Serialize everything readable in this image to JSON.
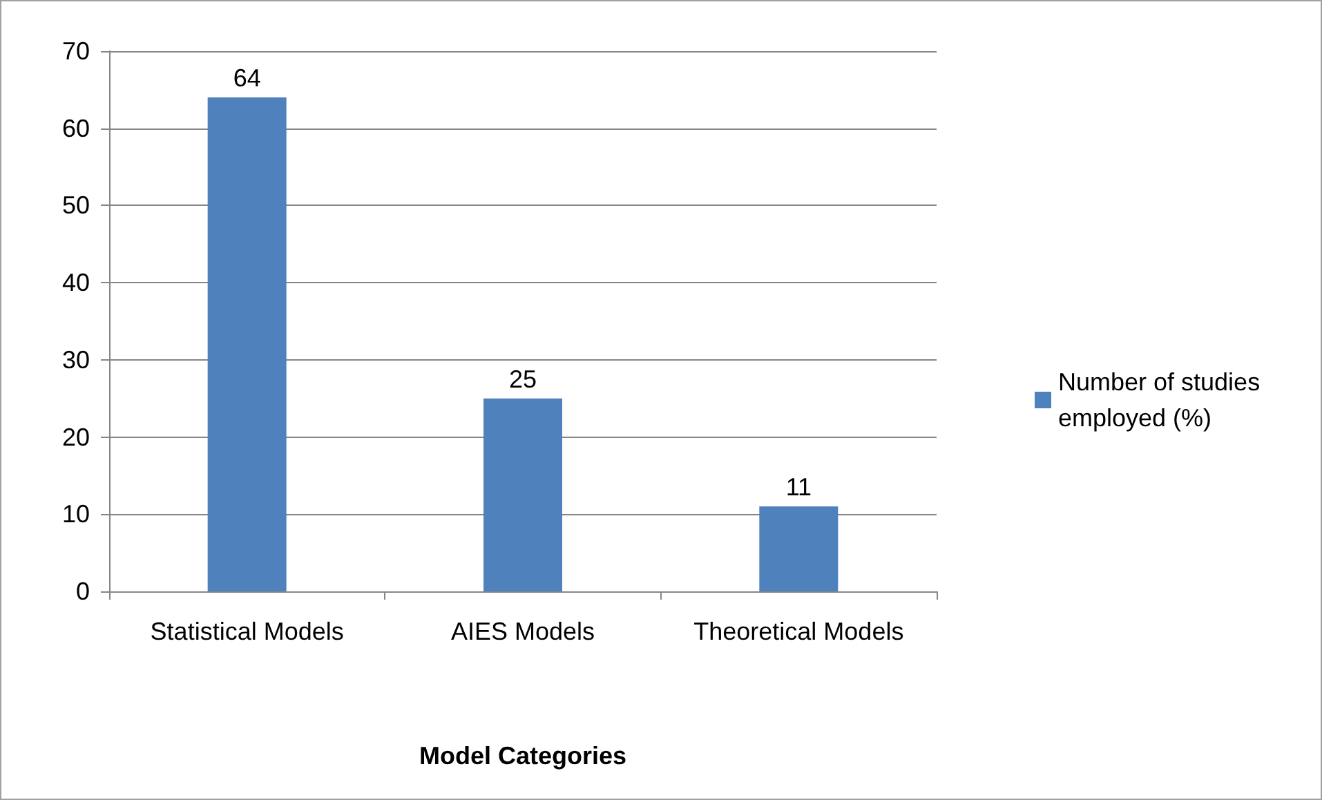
{
  "chart_data": {
    "type": "bar",
    "xlabel": "Model Categories",
    "categories": [
      "Statistical Models",
      "AIES Models",
      "Theoretical Models"
    ],
    "series": [
      {
        "name": "Number of studies employed (%)",
        "color": "#4f81bd",
        "values": [
          64,
          25,
          11
        ]
      }
    ],
    "ylim": [
      0,
      70
    ],
    "yticks": [
      0,
      10,
      20,
      30,
      40,
      50,
      60,
      70
    ],
    "grid": "y",
    "legend": "right",
    "data_labels": true
  }
}
